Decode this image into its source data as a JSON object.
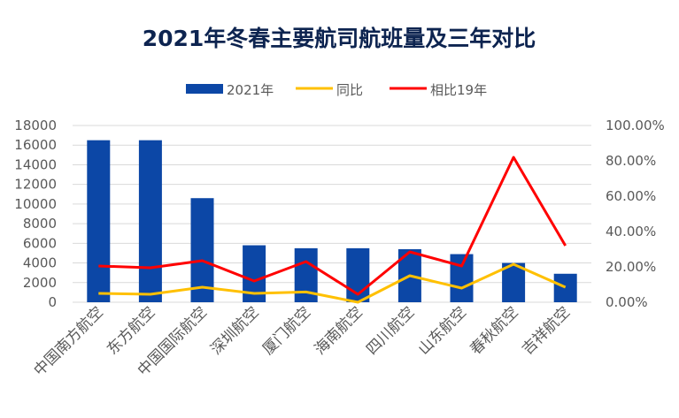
{
  "chart_data": {
    "type": "bar",
    "title": "2021年冬春主要航司航班量及三年对比",
    "categories": [
      "中国南方航空",
      "东方航空",
      "中国国际航空",
      "深圳航空",
      "厦门航空",
      "海南航空",
      "四川航空",
      "山东航空",
      "春秋航空",
      "吉祥航空"
    ],
    "series": [
      {
        "name": "2021年",
        "type": "bar",
        "axis": "left",
        "color": "#0c47a6",
        "values": [
          16500,
          16500,
          10600,
          5800,
          5500,
          5500,
          5400,
          4900,
          4000,
          2900
        ]
      },
      {
        "name": "同比",
        "type": "line",
        "axis": "right",
        "color": "#ffc000",
        "values": [
          0.05,
          0.045,
          0.085,
          0.05,
          0.058,
          0.0,
          0.15,
          0.08,
          0.215,
          0.085
        ]
      },
      {
        "name": "相比19年",
        "type": "line",
        "axis": "right",
        "color": "#ff0000",
        "values": [
          0.205,
          0.195,
          0.235,
          0.12,
          0.23,
          0.045,
          0.285,
          0.205,
          0.82,
          0.32
        ]
      }
    ],
    "y_left": {
      "min": 0,
      "max": 18000,
      "step": 2000,
      "ticks": [
        "0",
        "2000",
        "4000",
        "6000",
        "8000",
        "10000",
        "12000",
        "14000",
        "16000",
        "18000"
      ]
    },
    "y_right": {
      "min": 0,
      "max": 1.0,
      "step": 0.2,
      "ticks": [
        "0.00%",
        "20.00%",
        "40.00%",
        "60.00%",
        "80.00%",
        "100.00%"
      ]
    },
    "grid": true,
    "legend": "top-center"
  }
}
